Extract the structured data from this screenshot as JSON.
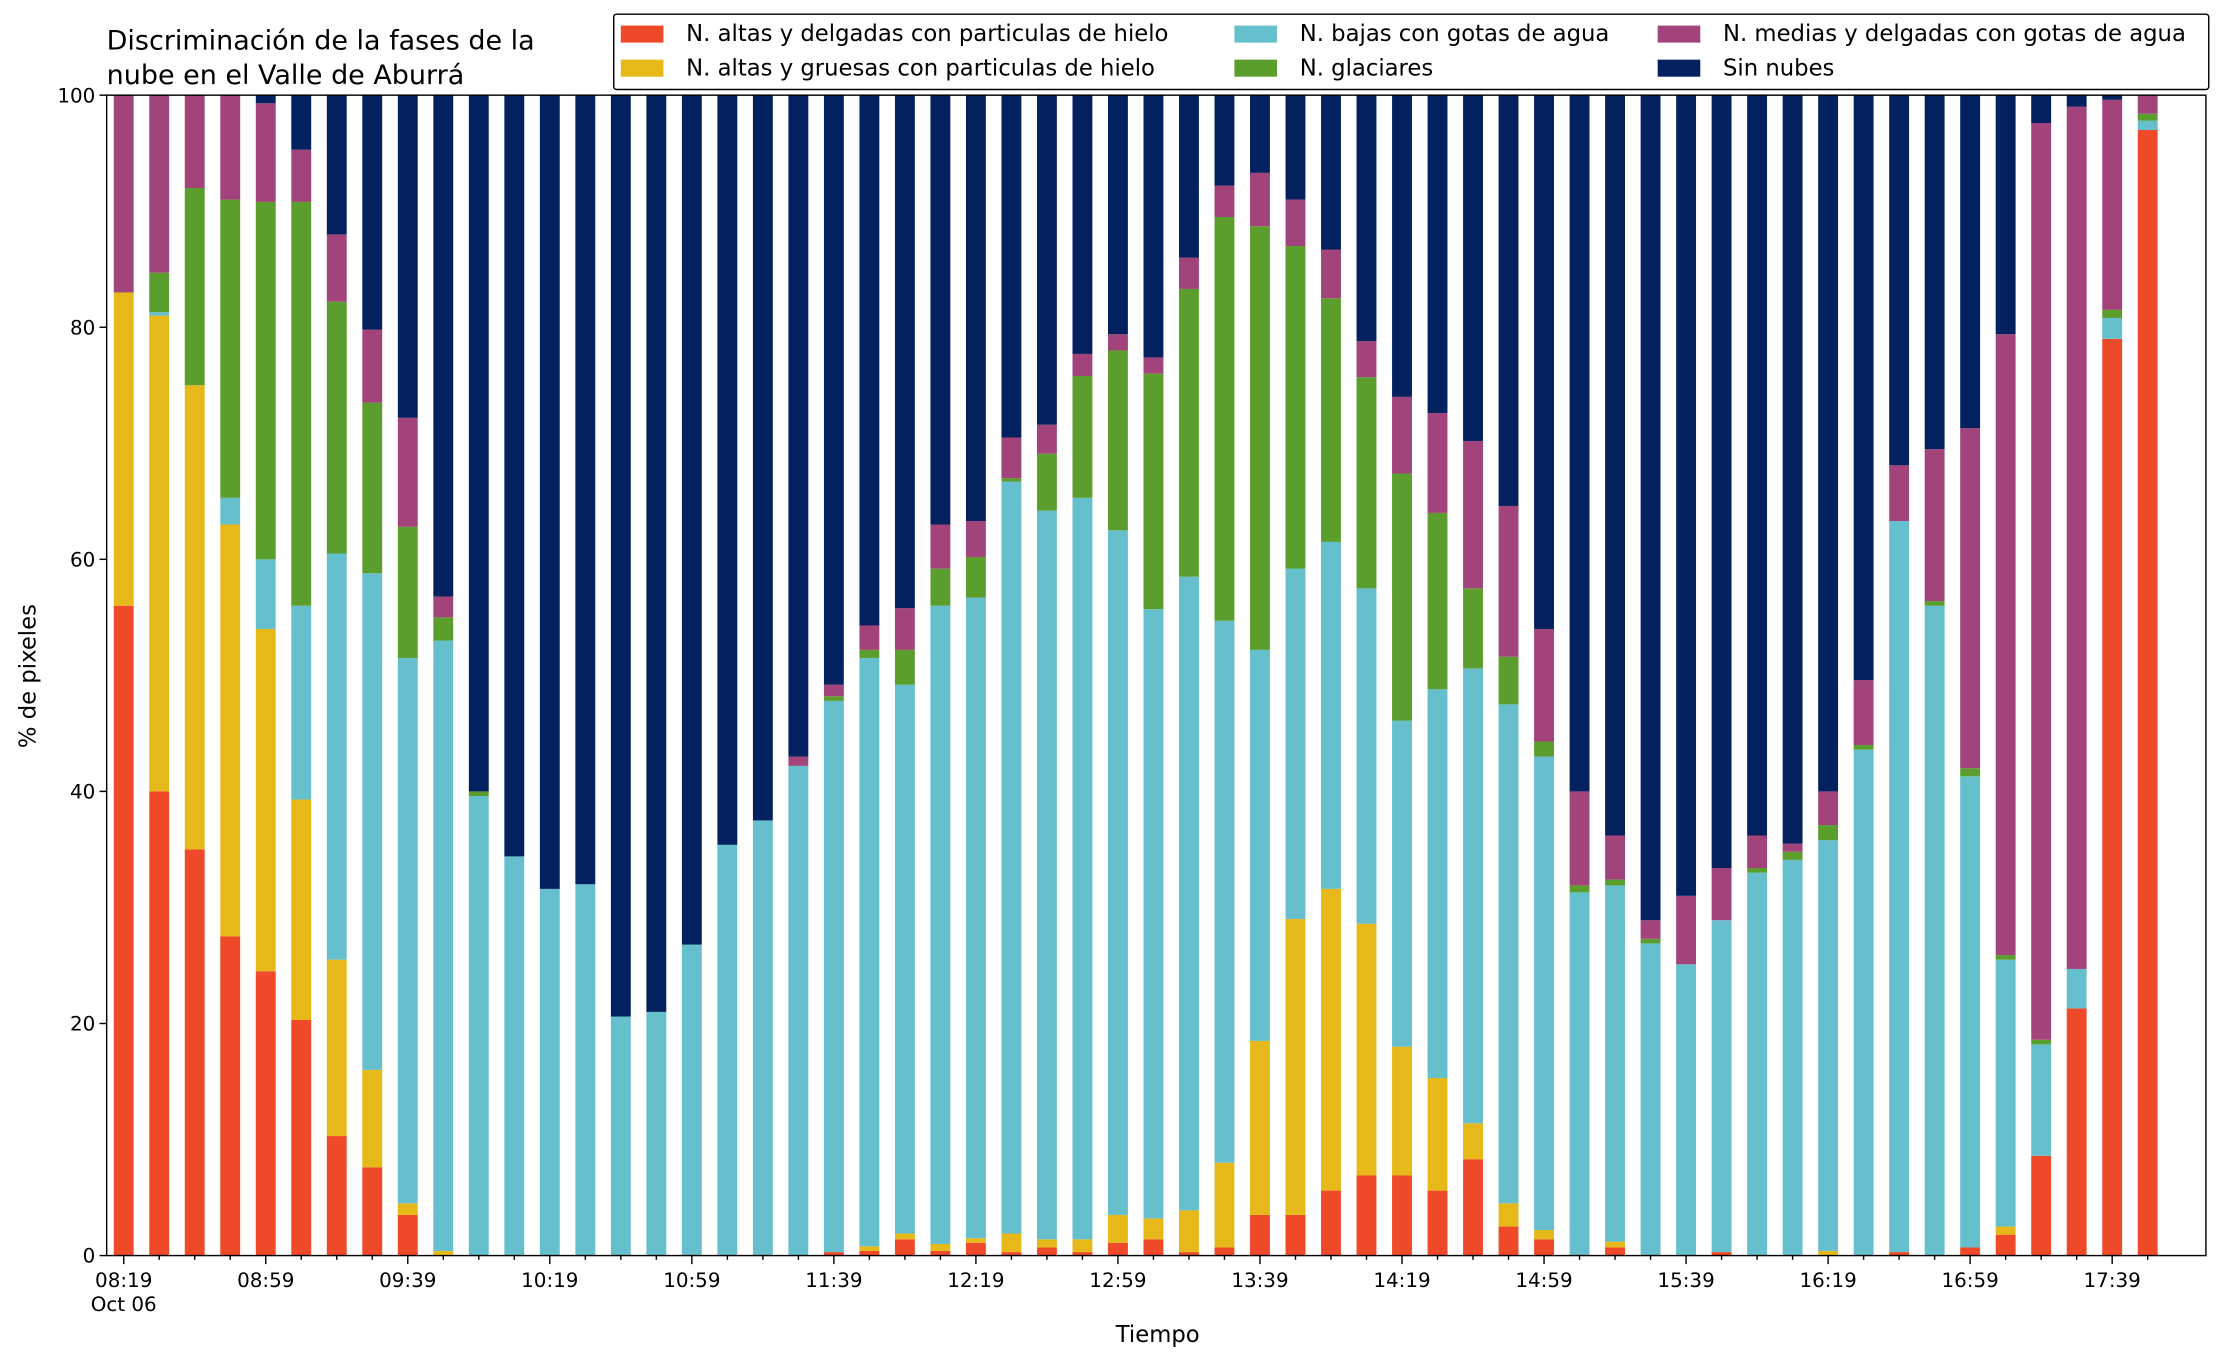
{
  "chart_data": {
    "type": "stacked_bar",
    "title": [
      "Discriminación de la fases de la",
      "nube en el Valle de Aburrá"
    ],
    "x_label": "Tiempo",
    "y_label": "% de pixeles",
    "x_date_label": "Oct 06",
    "categories": [
      "08:19",
      null,
      null,
      null,
      "08:59",
      null,
      null,
      null,
      "09:39",
      null,
      null,
      null,
      "10:19",
      null,
      null,
      null,
      "10:59",
      null,
      null,
      null,
      "11:39",
      null,
      null,
      null,
      "12:19",
      null,
      null,
      null,
      "12:59",
      null,
      null,
      null,
      "13:39",
      null,
      null,
      null,
      "14:19",
      null,
      null,
      null,
      "14:59",
      null,
      null,
      null,
      "15:39",
      null,
      null,
      null,
      "16:19",
      null,
      null,
      null,
      "16:59",
      null,
      null,
      null,
      "17:39",
      null
    ],
    "ylim": [
      0,
      100
    ],
    "yticks": [
      0,
      20,
      40,
      60,
      80,
      100
    ],
    "legend": "top-right",
    "series": [
      {
        "name": "N. altas y delgadas con particulas de hielo",
        "color": "#ee4a2a",
        "values": [
          56,
          40,
          35,
          27.5,
          24.5,
          20.3,
          10.3,
          7.6,
          3.5,
          0,
          0,
          0,
          0,
          0,
          0,
          0,
          0,
          0,
          0,
          0,
          0.3,
          0.4,
          1.4,
          0.4,
          1.1,
          0.3,
          0.7,
          0.3,
          1.1,
          1.4,
          0.3,
          0.7,
          3.5,
          3.5,
          5.6,
          6.9,
          6.9,
          5.6,
          8.3,
          2.5,
          1.4,
          0,
          0.7,
          0,
          0,
          0.3,
          0,
          0,
          0,
          0,
          0.3,
          0,
          0.7,
          1.8,
          8.6,
          21.3,
          79,
          97
        ]
      },
      {
        "name": "N. altas y gruesas con particulas de hielo",
        "color": "#e6b81a",
        "values": [
          27,
          41,
          40,
          35.5,
          29.5,
          19,
          15.2,
          8.4,
          1,
          0.4,
          0,
          0,
          0,
          0,
          0,
          0,
          0,
          0,
          0,
          0,
          0,
          0.4,
          0.5,
          0.6,
          0.4,
          1.6,
          0.7,
          1.1,
          2.4,
          1.8,
          3.6,
          7.3,
          15,
          25.5,
          26,
          21.7,
          11.1,
          9.7,
          3.1,
          2,
          0.8,
          0,
          0.5,
          0,
          0,
          0,
          0,
          0,
          0.4,
          0,
          0,
          0,
          0,
          0.7,
          0,
          0,
          0,
          0
        ]
      },
      {
        "name": "N. bajas con gotas de agua",
        "color": "#66bfcc",
        "values": [
          0,
          0.3,
          0,
          2.3,
          6,
          16.7,
          35,
          42.8,
          47,
          52.6,
          39.6,
          34.4,
          31.6,
          32,
          20.6,
          21,
          26.8,
          35.4,
          37.5,
          42.2,
          47.5,
          50.7,
          47.3,
          55,
          55.2,
          64.8,
          62.8,
          63.9,
          59,
          52.5,
          54.6,
          46.7,
          33.7,
          30.2,
          29.9,
          28.9,
          28.1,
          33.5,
          39.2,
          43,
          40.8,
          31.3,
          30.7,
          26.9,
          25.1,
          28.6,
          33,
          34.1,
          35.4,
          43.6,
          63,
          56,
          40.6,
          23,
          9.6,
          3.4,
          1.8,
          0.8
        ]
      },
      {
        "name": "N. glaciares",
        "color": "#5c9e2e",
        "values": [
          0,
          3.4,
          17,
          25.7,
          30.8,
          34.8,
          21.7,
          14.7,
          11.3,
          2,
          0.4,
          0,
          0,
          0,
          0,
          0,
          0,
          0,
          0,
          0,
          0.4,
          0.7,
          3,
          3.2,
          3.5,
          0.3,
          4.9,
          10.5,
          15.5,
          20.3,
          24.8,
          34.8,
          36.5,
          27.8,
          21,
          18.2,
          21.3,
          15.2,
          6.9,
          4.1,
          1.3,
          0.6,
          0.5,
          0.4,
          0,
          0,
          0.4,
          0.7,
          1.3,
          0.4,
          0,
          0.4,
          0.7,
          0.4,
          0.4,
          0,
          0.7,
          0.6
        ]
      },
      {
        "name": "N. medias y delgadas con gotas de agua",
        "color": "#a2447b",
        "values": [
          17,
          15.3,
          8,
          9,
          8.5,
          4.5,
          5.8,
          6.3,
          9.4,
          1.8,
          0,
          0,
          0,
          0,
          0,
          0,
          0,
          0,
          0,
          0.8,
          1,
          2.1,
          3.6,
          3.8,
          3.1,
          3.5,
          2.5,
          1.9,
          1.4,
          1.4,
          2.7,
          2.7,
          4.6,
          4,
          4.2,
          3.1,
          6.6,
          8.6,
          12.7,
          13,
          9.7,
          8.1,
          3.8,
          1.6,
          5.9,
          4.5,
          2.8,
          0.7,
          2.9,
          5.6,
          4.8,
          13.1,
          29.3,
          53.5,
          79,
          74.3,
          18.1,
          1.6
        ]
      },
      {
        "name": "Sin nubes",
        "color": "#03215e",
        "values": [
          0,
          0,
          0,
          0,
          0.7,
          4.7,
          12,
          20.2,
          27.8,
          43.2,
          60,
          65.6,
          68.4,
          68,
          79.4,
          79,
          73.2,
          64.6,
          62.5,
          57,
          50.8,
          45.7,
          44.2,
          37,
          36.7,
          29.5,
          28.4,
          22.3,
          20.6,
          22.6,
          14,
          7.8,
          6.7,
          9,
          13.3,
          21.2,
          26,
          27.4,
          29.8,
          35.4,
          46,
          60,
          63.8,
          71.1,
          69,
          66.6,
          63.8,
          64.5,
          60,
          50.4,
          31.9,
          30.5,
          28.7,
          20.6,
          2.4,
          1,
          0.4,
          0
        ]
      }
    ]
  }
}
